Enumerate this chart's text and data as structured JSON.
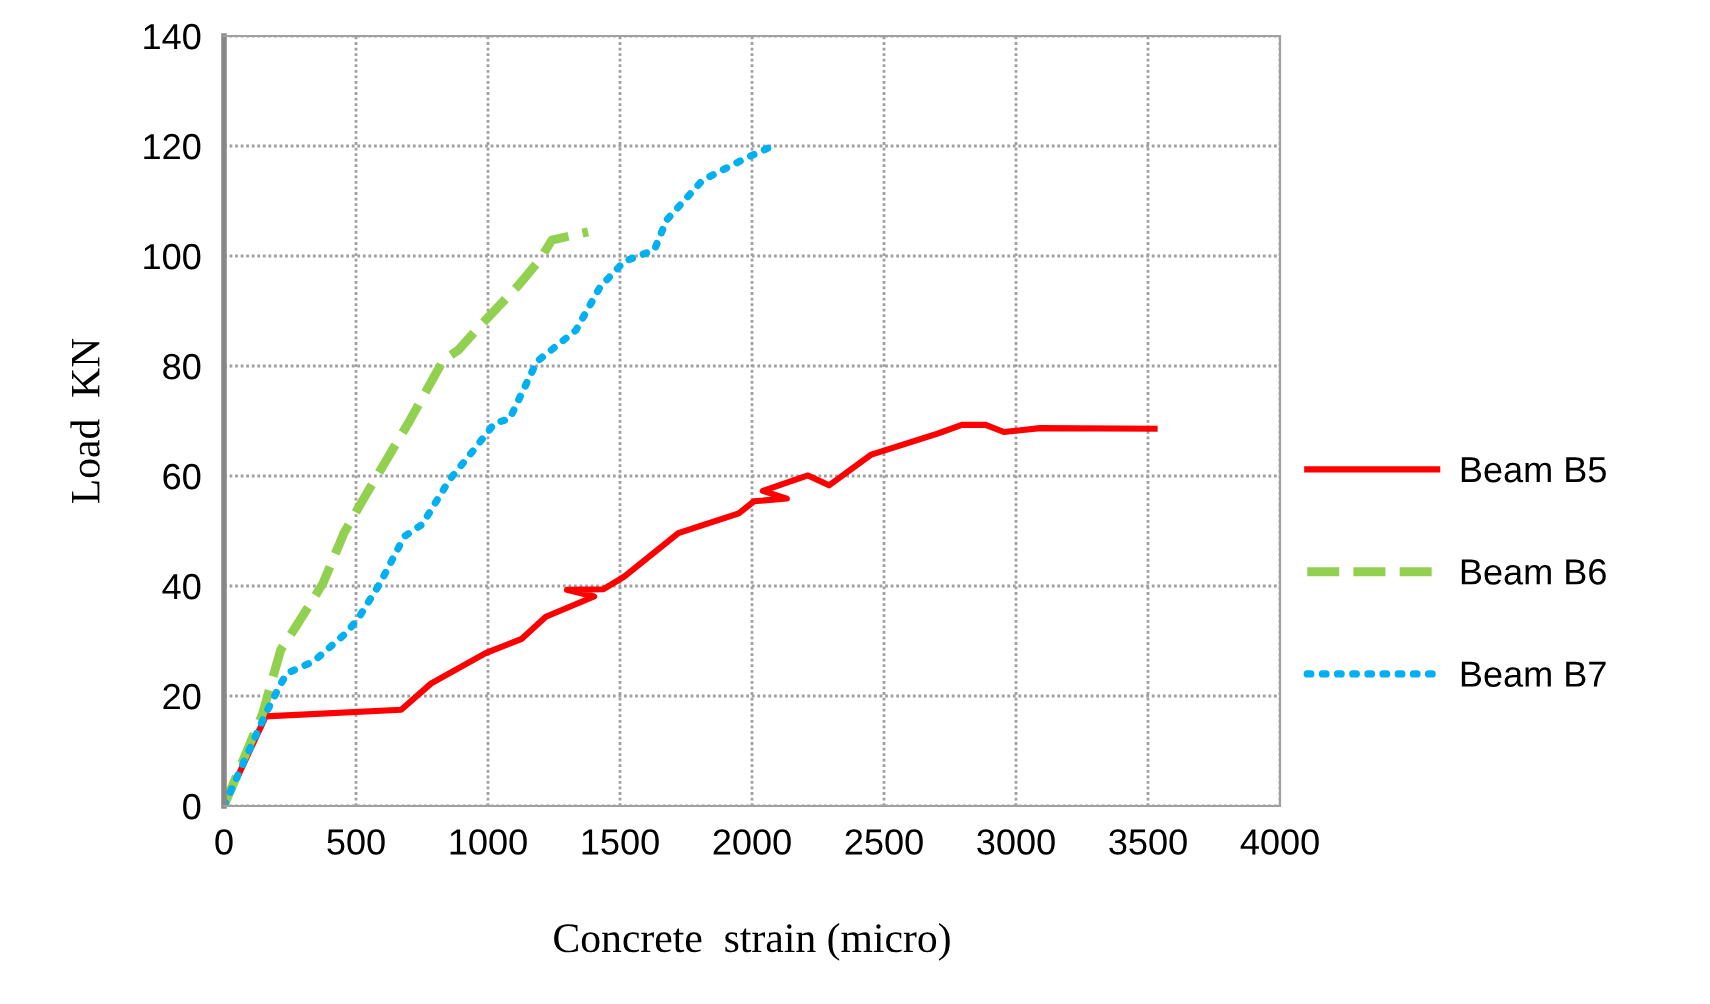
{
  "chart_data": {
    "type": "line",
    "xlabel": "Concrete  strain (micro)",
    "ylabel": "Load  KN",
    "xlim": [
      0,
      4000
    ],
    "xticks": [
      0,
      500,
      1000,
      1500,
      2000,
      2500,
      3000,
      3500,
      4000
    ],
    "ylim": [
      0,
      140
    ],
    "yticks": [
      0,
      20,
      40,
      60,
      80,
      100,
      120,
      140
    ],
    "grid": true,
    "legend": "right",
    "marker": "none",
    "series": [
      {
        "name": "Beam B5",
        "color": "#ff0000",
        "line_style": "solid",
        "x": [
          0,
          158,
          671,
          785,
          991,
          1128,
          1219,
          1402,
          1299,
          1436,
          1516,
          1721,
          1950,
          2007,
          2132,
          2041,
          2212,
          2292,
          2452,
          2703,
          2795,
          2885,
          2954,
          3091,
          3525
        ],
        "values": [
          0,
          16.3,
          17.5,
          22.3,
          27.8,
          30.4,
          34.4,
          38.1,
          39.3,
          39.4,
          41.7,
          49.6,
          53.2,
          55.4,
          55.9,
          57.3,
          60.1,
          58.3,
          63.9,
          67.7,
          69.3,
          69.3,
          68,
          68.7,
          68.6
        ]
      },
      {
        "name": "Beam B6",
        "color": "#92d050",
        "line_style": "dashed",
        "x": [
          0,
          146,
          215,
          272,
          375,
          454,
          534,
          705,
          831,
          888,
          968,
          1116,
          1196,
          1242,
          1379
        ],
        "values": [
          0,
          16.8,
          28.4,
          32.6,
          40.5,
          49.6,
          56.3,
          70.2,
          81.1,
          82.9,
          87.2,
          94.7,
          99.3,
          102.9,
          104.4
        ]
      },
      {
        "name": "Beam B7",
        "color": "#00b0f0",
        "line_style": "dotted",
        "x": [
          0,
          158,
          203,
          237,
          340,
          466,
          511,
          591,
          683,
          751,
          854,
          945,
          1025,
          1082,
          1185,
          1333,
          1425,
          1516,
          1630,
          1676,
          1813,
          1973,
          2087
        ],
        "values": [
          0,
          16.8,
          21.1,
          24.1,
          26.3,
          31.6,
          34.3,
          40.5,
          49,
          51.2,
          59.3,
          64.7,
          69.6,
          70.4,
          80.8,
          86.5,
          94.4,
          99,
          101.1,
          106.5,
          113.8,
          117.7,
          120.2
        ]
      }
    ]
  }
}
